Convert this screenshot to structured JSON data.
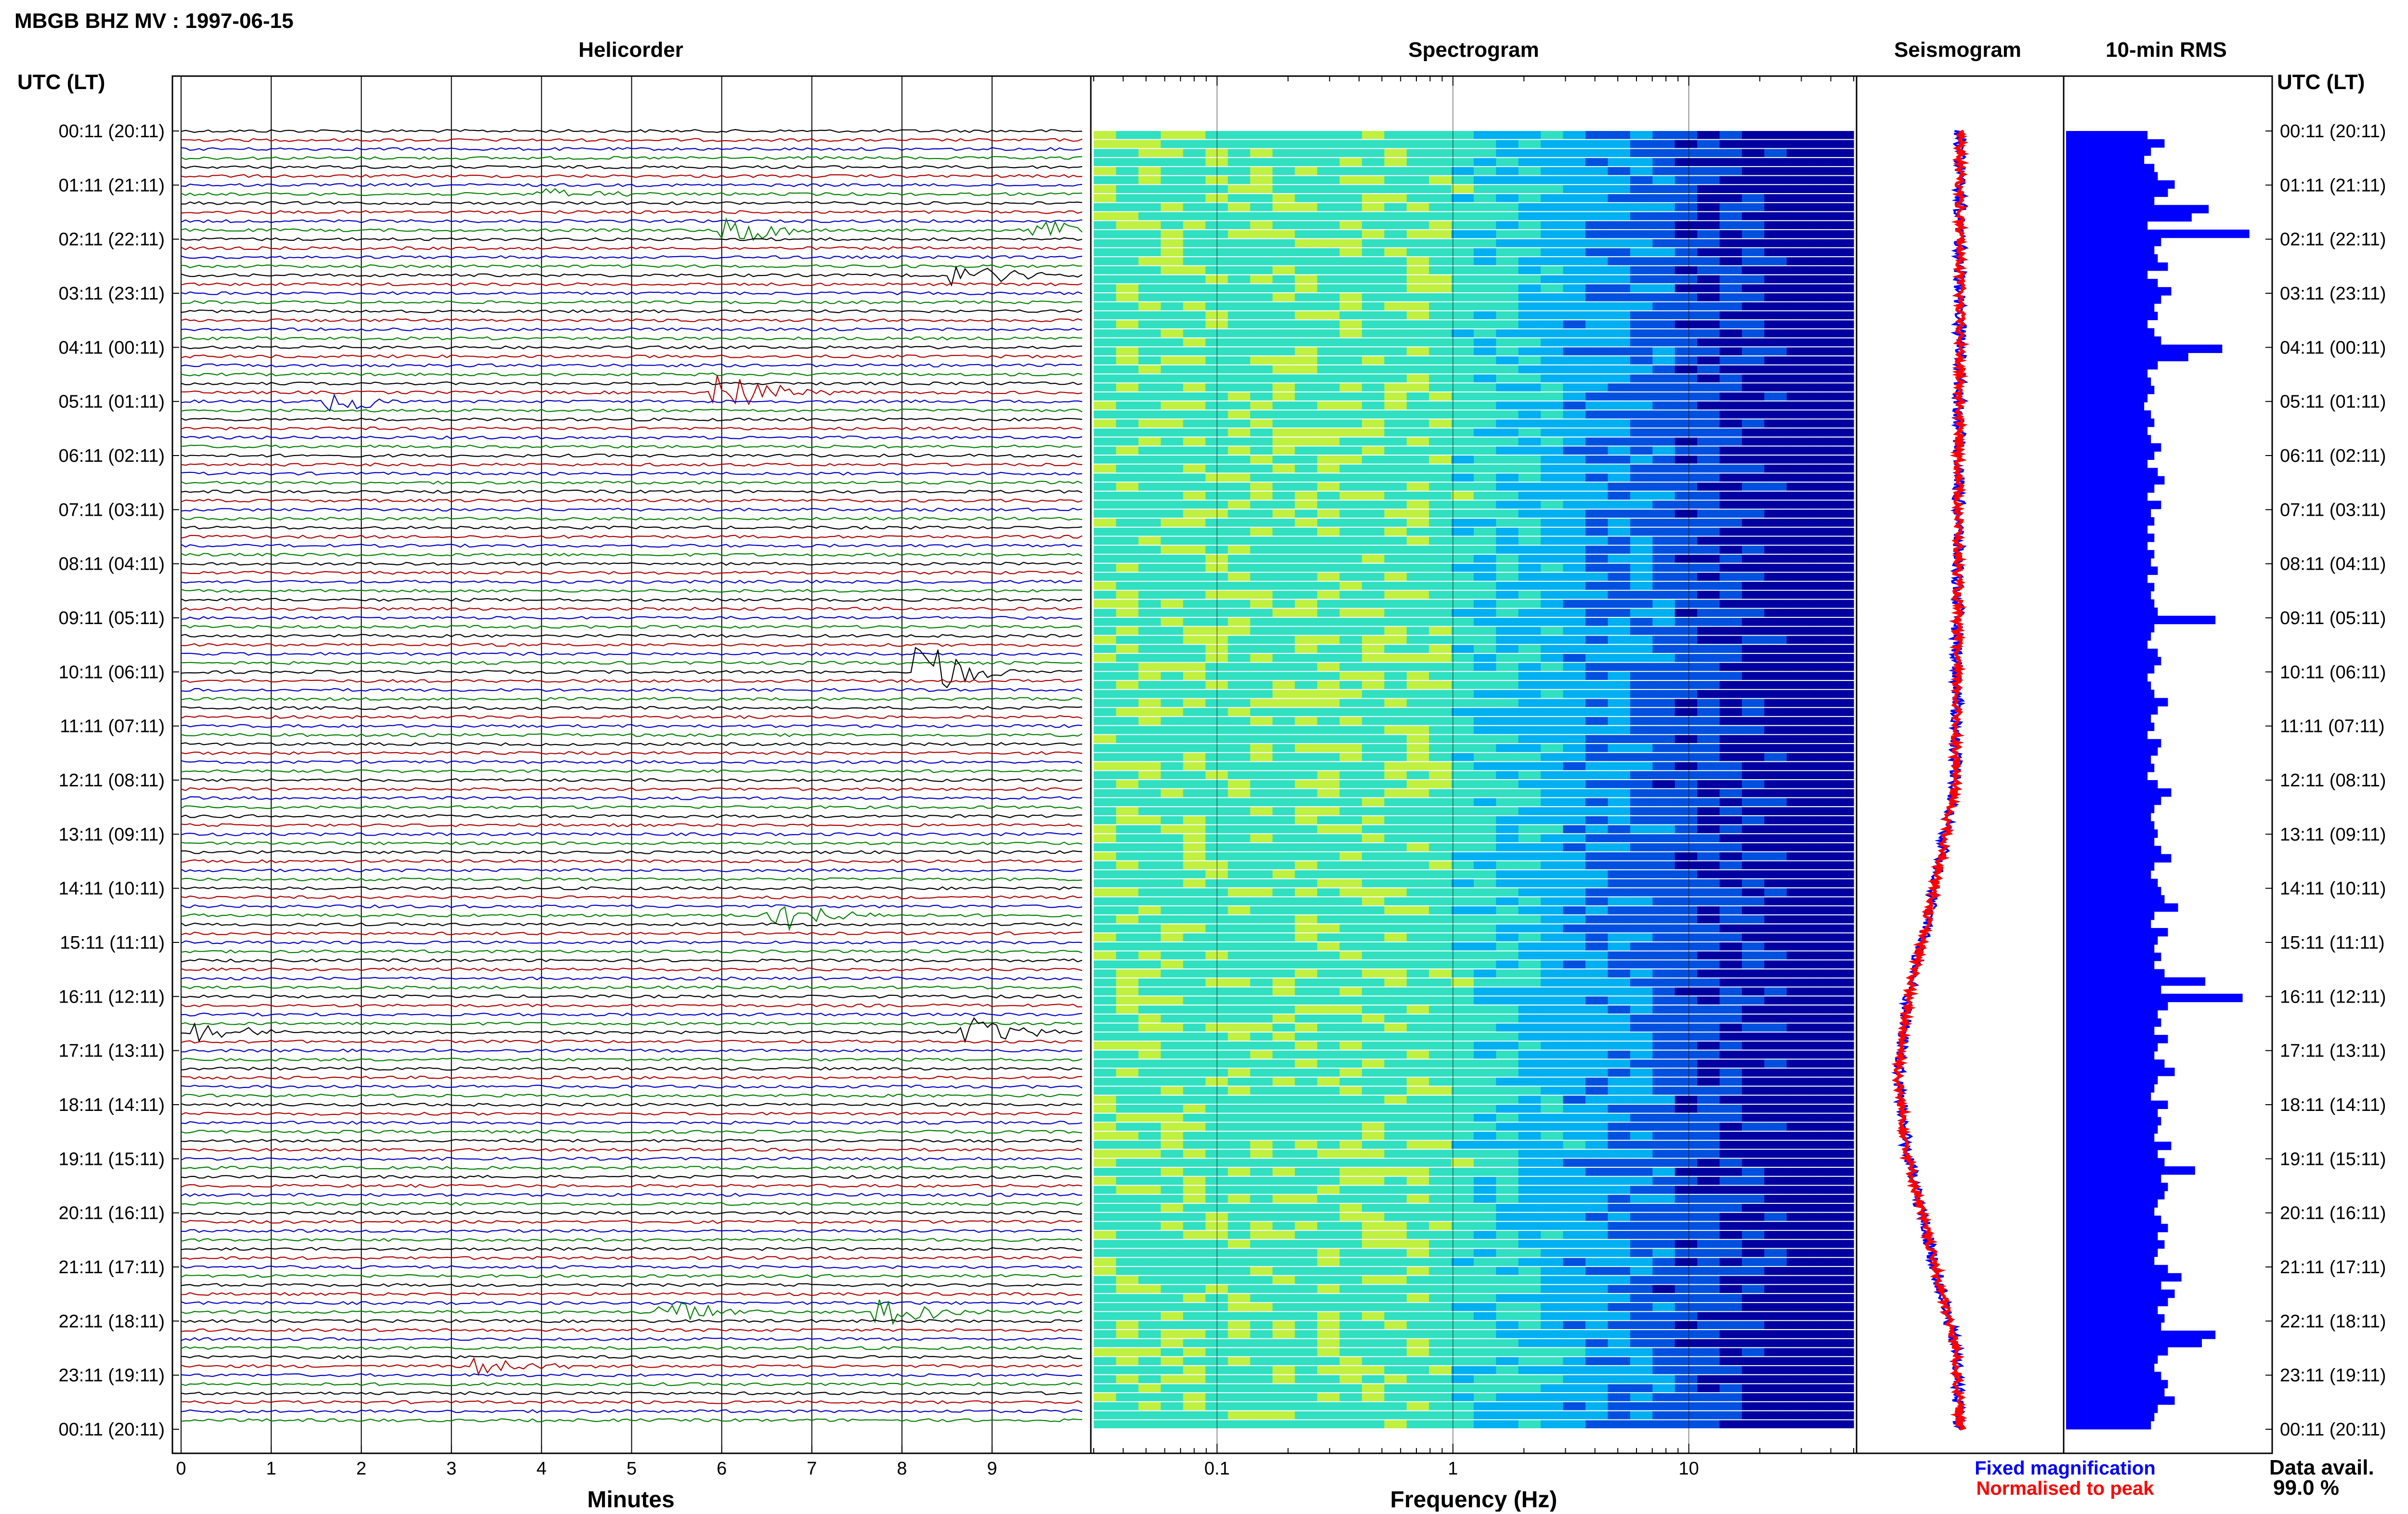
{
  "header": {
    "title": "MBGB BHZ MV : 1997-06-15"
  },
  "panels": {
    "helicorder": "Helicorder",
    "spectrogram": "Spectrogram",
    "seismogram": "Seismogram",
    "rms": "10-min RMS"
  },
  "axes": {
    "y_header_left": "UTC (LT)",
    "y_header_right": "UTC (LT)",
    "helicorder_xlabel": "Minutes",
    "spectrogram_xlabel": "Frequency (Hz)"
  },
  "legend": {
    "fixed": "Fixed magnification",
    "normalised": "Normalised to peak",
    "fixed_color": "#0000ff",
    "normalised_color": "#ff0000"
  },
  "data_avail": {
    "label": "Data avail.",
    "value": "99.0 %"
  },
  "colors": {
    "trace_cycle": [
      "#000000",
      "#b00000",
      "#0000c8",
      "#008000"
    ],
    "rms_bar": "#0000ff"
  },
  "chart_data": [
    {
      "type": "line",
      "name": "helicorder",
      "x_ticks": [
        0,
        1,
        2,
        3,
        4,
        5,
        6,
        7,
        8,
        9
      ],
      "xlim": [
        0,
        10
      ],
      "y_ticks": [
        "00:11 (20:11)",
        "01:11 (21:11)",
        "02:11 (22:11)",
        "03:11 (23:11)",
        "04:11 (00:11)",
        "05:11 (01:11)",
        "06:11 (02:11)",
        "07:11 (03:11)",
        "08:11 (04:11)",
        "09:11 (05:11)",
        "10:11 (06:11)",
        "11:11 (07:11)",
        "12:11 (08:11)",
        "13:11 (09:11)",
        "14:11 (10:11)",
        "15:11 (11:11)",
        "16:11 (12:11)",
        "17:11 (13:11)",
        "18:11 (14:11)",
        "19:11 (15:11)",
        "20:11 (16:11)",
        "21:11 (17:11)",
        "22:11 (18:11)",
        "23:11 (19:11)",
        "00:11 (20:11)"
      ],
      "events": [
        {
          "hour": 1.1,
          "minute": 4.2,
          "amp": 2.0
        },
        {
          "hour": 1.9,
          "minute": 6.3,
          "amp": 4.0
        },
        {
          "hour": 1.9,
          "minute": 9.7,
          "amp": 3.5
        },
        {
          "hour": 2.6,
          "minute": 8.8,
          "amp": 4.0
        },
        {
          "hour": 4.9,
          "minute": 6.2,
          "amp": 6.0
        },
        {
          "hour": 4.95,
          "minute": 1.9,
          "amp": 3.0
        },
        {
          "hour": 10.0,
          "minute": 8.4,
          "amp": 8.0
        },
        {
          "hour": 14.5,
          "minute": 6.8,
          "amp": 5.0
        },
        {
          "hour": 16.6,
          "minute": 0.4,
          "amp": 3.0
        },
        {
          "hour": 16.6,
          "minute": 8.9,
          "amp": 4.5
        },
        {
          "hour": 21.9,
          "minute": 8.0,
          "amp": 4.0
        },
        {
          "hour": 21.8,
          "minute": 5.6,
          "amp": 3.0
        },
        {
          "hour": 22.9,
          "minute": 3.5,
          "amp": 2.5
        }
      ]
    },
    {
      "type": "heatmap",
      "name": "spectrogram",
      "x_scale": "log",
      "x_ticks": [
        0.1,
        1,
        10
      ],
      "xlim": [
        0.03,
        50
      ],
      "colormap": [
        "#0000a0",
        "#0050e0",
        "#00b0f0",
        "#30e0c0",
        "#c0f040"
      ]
    },
    {
      "type": "line",
      "name": "seismogram",
      "series": [
        {
          "name": "Fixed magnification",
          "envelope_hours": [
            0,
            4,
            8,
            12,
            14,
            16,
            17.5,
            19,
            21,
            22.5,
            24
          ],
          "envelope_center": [
            0.5,
            0.5,
            0.49,
            0.48,
            0.38,
            0.25,
            0.2,
            0.25,
            0.38,
            0.48,
            0.5
          ]
        },
        {
          "name": "Normalised to peak"
        }
      ]
    },
    {
      "type": "bar",
      "name": "10-min RMS",
      "values": [
        1.2,
        1.45,
        1.25,
        1.15,
        1.3,
        1.35,
        1.6,
        1.5,
        1.3,
        2.1,
        1.85,
        1.2,
        2.7,
        1.4,
        1.3,
        1.35,
        1.5,
        1.2,
        1.35,
        1.55,
        1.4,
        1.3,
        1.35,
        1.2,
        1.3,
        1.4,
        2.3,
        1.8,
        1.35,
        1.2,
        1.25,
        1.3,
        1.2,
        1.15,
        1.25,
        1.3,
        1.2,
        1.25,
        1.4,
        1.3,
        1.2,
        1.35,
        1.45,
        1.3,
        1.2,
        1.4,
        1.25,
        1.3,
        1.2,
        1.3,
        1.2,
        1.3,
        1.25,
        1.35,
        1.2,
        1.3,
        1.25,
        1.3,
        1.35,
        2.2,
        1.3,
        1.25,
        1.2,
        1.35,
        1.4,
        1.3,
        1.2,
        1.25,
        1.3,
        1.5,
        1.35,
        1.25,
        1.3,
        1.2,
        1.4,
        1.35,
        1.25,
        1.3,
        1.2,
        1.35,
        1.55,
        1.4,
        1.3,
        1.25,
        1.3,
        1.35,
        1.3,
        1.4,
        1.55,
        1.3,
        1.25,
        1.35,
        1.4,
        1.45,
        1.65,
        1.3,
        1.25,
        1.5,
        1.35,
        1.3,
        1.4,
        1.3,
        1.45,
        2.05,
        1.4,
        2.6,
        1.5,
        1.35,
        1.4,
        1.3,
        1.5,
        1.35,
        1.3,
        1.45,
        1.6,
        1.35,
        1.3,
        1.25,
        1.5,
        1.35,
        1.4,
        1.35,
        1.3,
        1.55,
        1.35,
        1.45,
        1.9,
        1.4,
        1.5,
        1.45,
        1.35,
        1.3,
        1.4,
        1.5,
        1.35,
        1.45,
        1.35,
        1.3,
        1.5,
        1.7,
        1.4,
        1.6,
        1.5,
        1.35,
        1.45,
        1.4,
        2.2,
        2.0,
        1.5,
        1.35,
        1.3,
        1.4,
        1.5,
        1.45,
        1.6,
        1.35,
        1.3,
        1.25
      ],
      "xlim": [
        0,
        3
      ]
    }
  ]
}
